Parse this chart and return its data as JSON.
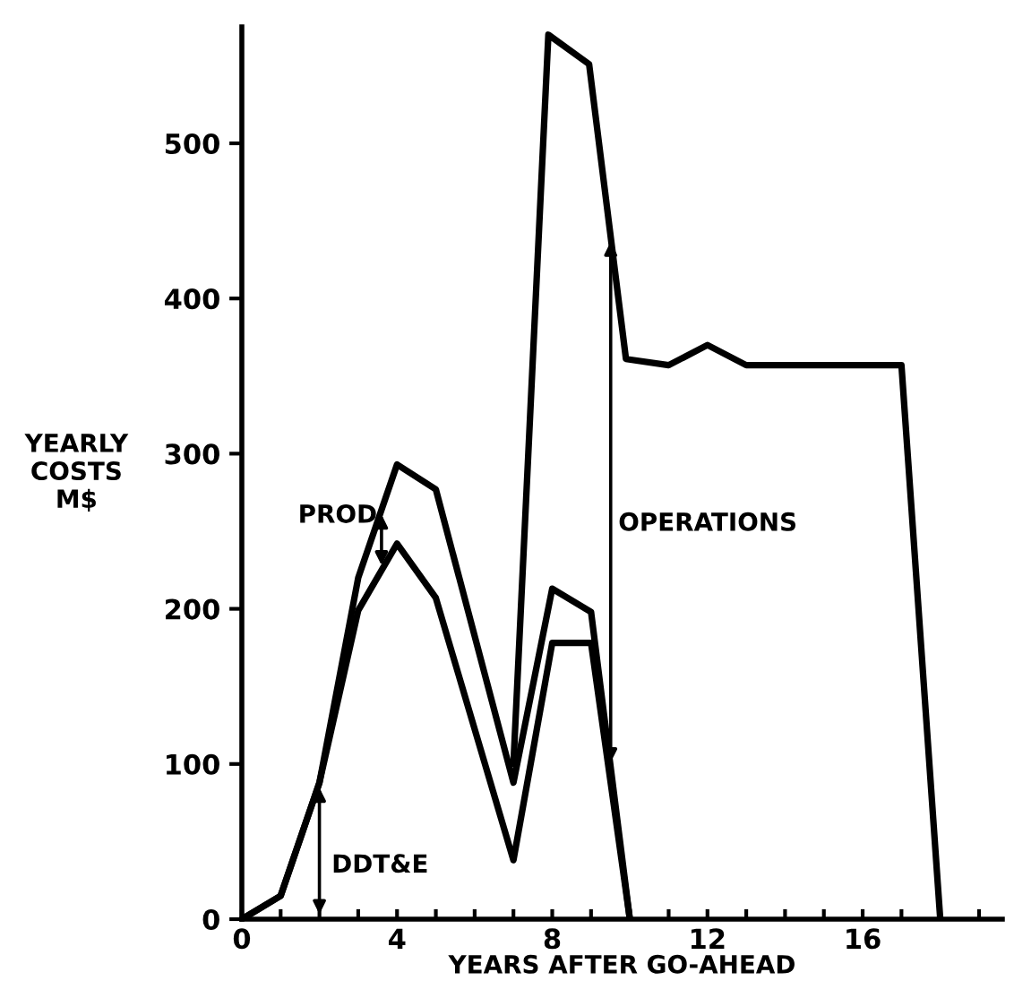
{
  "chart_data": {
    "type": "line",
    "xlabel": "YEARS AFTER GO-AHEAD",
    "ylabel": "YEARLY\nCOSTS\nM$",
    "xlim": [
      0,
      19.6
    ],
    "ylim": [
      0,
      575
    ],
    "xticks": [
      0,
      {
        "value": 1,
        "label": null
      },
      {
        "value": 2,
        "label": null
      },
      {
        "value": 3,
        "label": null
      },
      4,
      {
        "value": 5,
        "label": null
      },
      {
        "value": 6,
        "label": null
      },
      {
        "value": 7,
        "label": null
      },
      8,
      {
        "value": 9,
        "label": null
      },
      {
        "value": 10,
        "label": null
      },
      {
        "value": 11,
        "label": null
      },
      12,
      {
        "value": 13,
        "label": null
      },
      {
        "value": 14,
        "label": null
      },
      {
        "value": 15,
        "label": null
      },
      16,
      {
        "value": 17,
        "label": null
      },
      {
        "value": 18,
        "label": null
      },
      {
        "value": 19,
        "label": null
      }
    ],
    "yticks": [
      0,
      100,
      200,
      300,
      400,
      500
    ],
    "series": [
      {
        "color": "#000000",
        "x": [
          0,
          1,
          2,
          3,
          4,
          5,
          7,
          8,
          9,
          10
        ],
        "values": [
          0,
          15,
          88,
          199,
          242,
          207,
          38,
          178,
          178,
          0
        ]
      },
      {
        "color": "#000000",
        "x": [
          0,
          1,
          2,
          3,
          4,
          5,
          7,
          8,
          9,
          10
        ],
        "values": [
          0,
          15,
          88,
          220,
          293,
          277,
          88,
          213,
          198,
          0
        ]
      },
      {
        "color": "#000000",
        "x": [
          7,
          7.9,
          8.95,
          9.9,
          11,
          12,
          13,
          17,
          18
        ],
        "values": [
          100,
          570,
          551,
          361,
          357,
          370,
          357,
          357,
          0
        ]
      }
    ],
    "annotations": [
      "DDT&E",
      {
        "text": "PROD",
        "x": 3.6,
        "y": 264
      },
      "OPERATIONS"
    ],
    "grid": false,
    "marker": "none",
    "line_style": "solid"
  }
}
